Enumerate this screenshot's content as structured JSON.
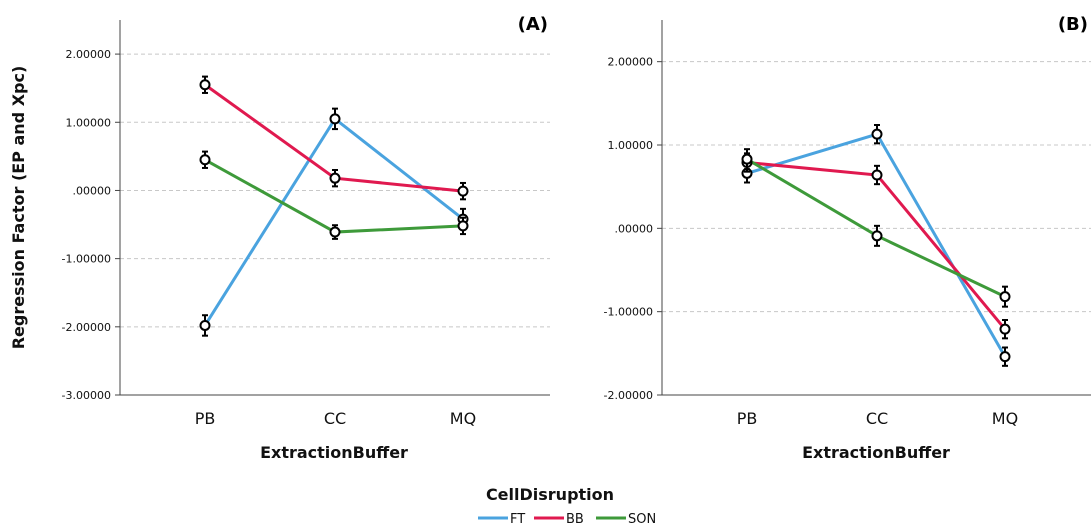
{
  "chart_data": [
    {
      "type": "line",
      "panel_label": "(A)",
      "xlabel": "ExtractionBuffer",
      "ylabel": "Regression Factor (EP and Xpc)",
      "categories": [
        "PB",
        "CC",
        "MQ"
      ],
      "ylim": [
        -3.0,
        2.5
      ],
      "yticks": [
        -3,
        -2,
        -1,
        0,
        1,
        2
      ],
      "ytick_labels": [
        "-3.00000",
        "-2.00000",
        "-1.00000",
        ".00000",
        "1.00000",
        "2.00000"
      ],
      "grid": true,
      "error_bars": true,
      "series": [
        {
          "name": "FT",
          "color": "#4aa3df",
          "values": [
            -1.98,
            1.05,
            -0.42
          ],
          "errors": [
            0.15,
            0.15,
            0.15
          ]
        },
        {
          "name": "BB",
          "color": "#e0194f",
          "values": [
            1.55,
            0.18,
            -0.01
          ],
          "errors": [
            0.12,
            0.12,
            0.12
          ]
        },
        {
          "name": "SON",
          "color": "#3e9a3a",
          "values": [
            0.45,
            -0.61,
            -0.52
          ],
          "errors": [
            0.12,
            0.1,
            0.12
          ]
        }
      ]
    },
    {
      "type": "line",
      "panel_label": "(B)",
      "xlabel": "ExtractionBuffer",
      "ylabel": "",
      "categories": [
        "PB",
        "CC",
        "MQ"
      ],
      "ylim": [
        -2.0,
        2.5
      ],
      "yticks": [
        -2,
        -1,
        0,
        1,
        2
      ],
      "ytick_labels": [
        "-2.00000",
        "-1.00000",
        ".00000",
        "1.00000",
        "2.00000"
      ],
      "grid": true,
      "error_bars": true,
      "series": [
        {
          "name": "FT",
          "color": "#4aa3df",
          "values": [
            0.66,
            1.13,
            -1.54
          ],
          "errors": [
            0.11,
            0.11,
            0.11
          ]
        },
        {
          "name": "BB",
          "color": "#e0194f",
          "values": [
            0.79,
            0.64,
            -1.21
          ],
          "errors": [
            0.11,
            0.11,
            0.11
          ]
        },
        {
          "name": "SON",
          "color": "#3e9a3a",
          "values": [
            0.83,
            -0.09,
            -0.82
          ],
          "errors": [
            0.12,
            0.12,
            0.12
          ]
        }
      ]
    }
  ],
  "legend": {
    "title": "CellDisruption",
    "position": "bottom-center",
    "items": [
      {
        "name": "FT",
        "color": "#4aa3df"
      },
      {
        "name": "BB",
        "color": "#e0194f"
      },
      {
        "name": "SON",
        "color": "#3e9a3a"
      }
    ]
  }
}
